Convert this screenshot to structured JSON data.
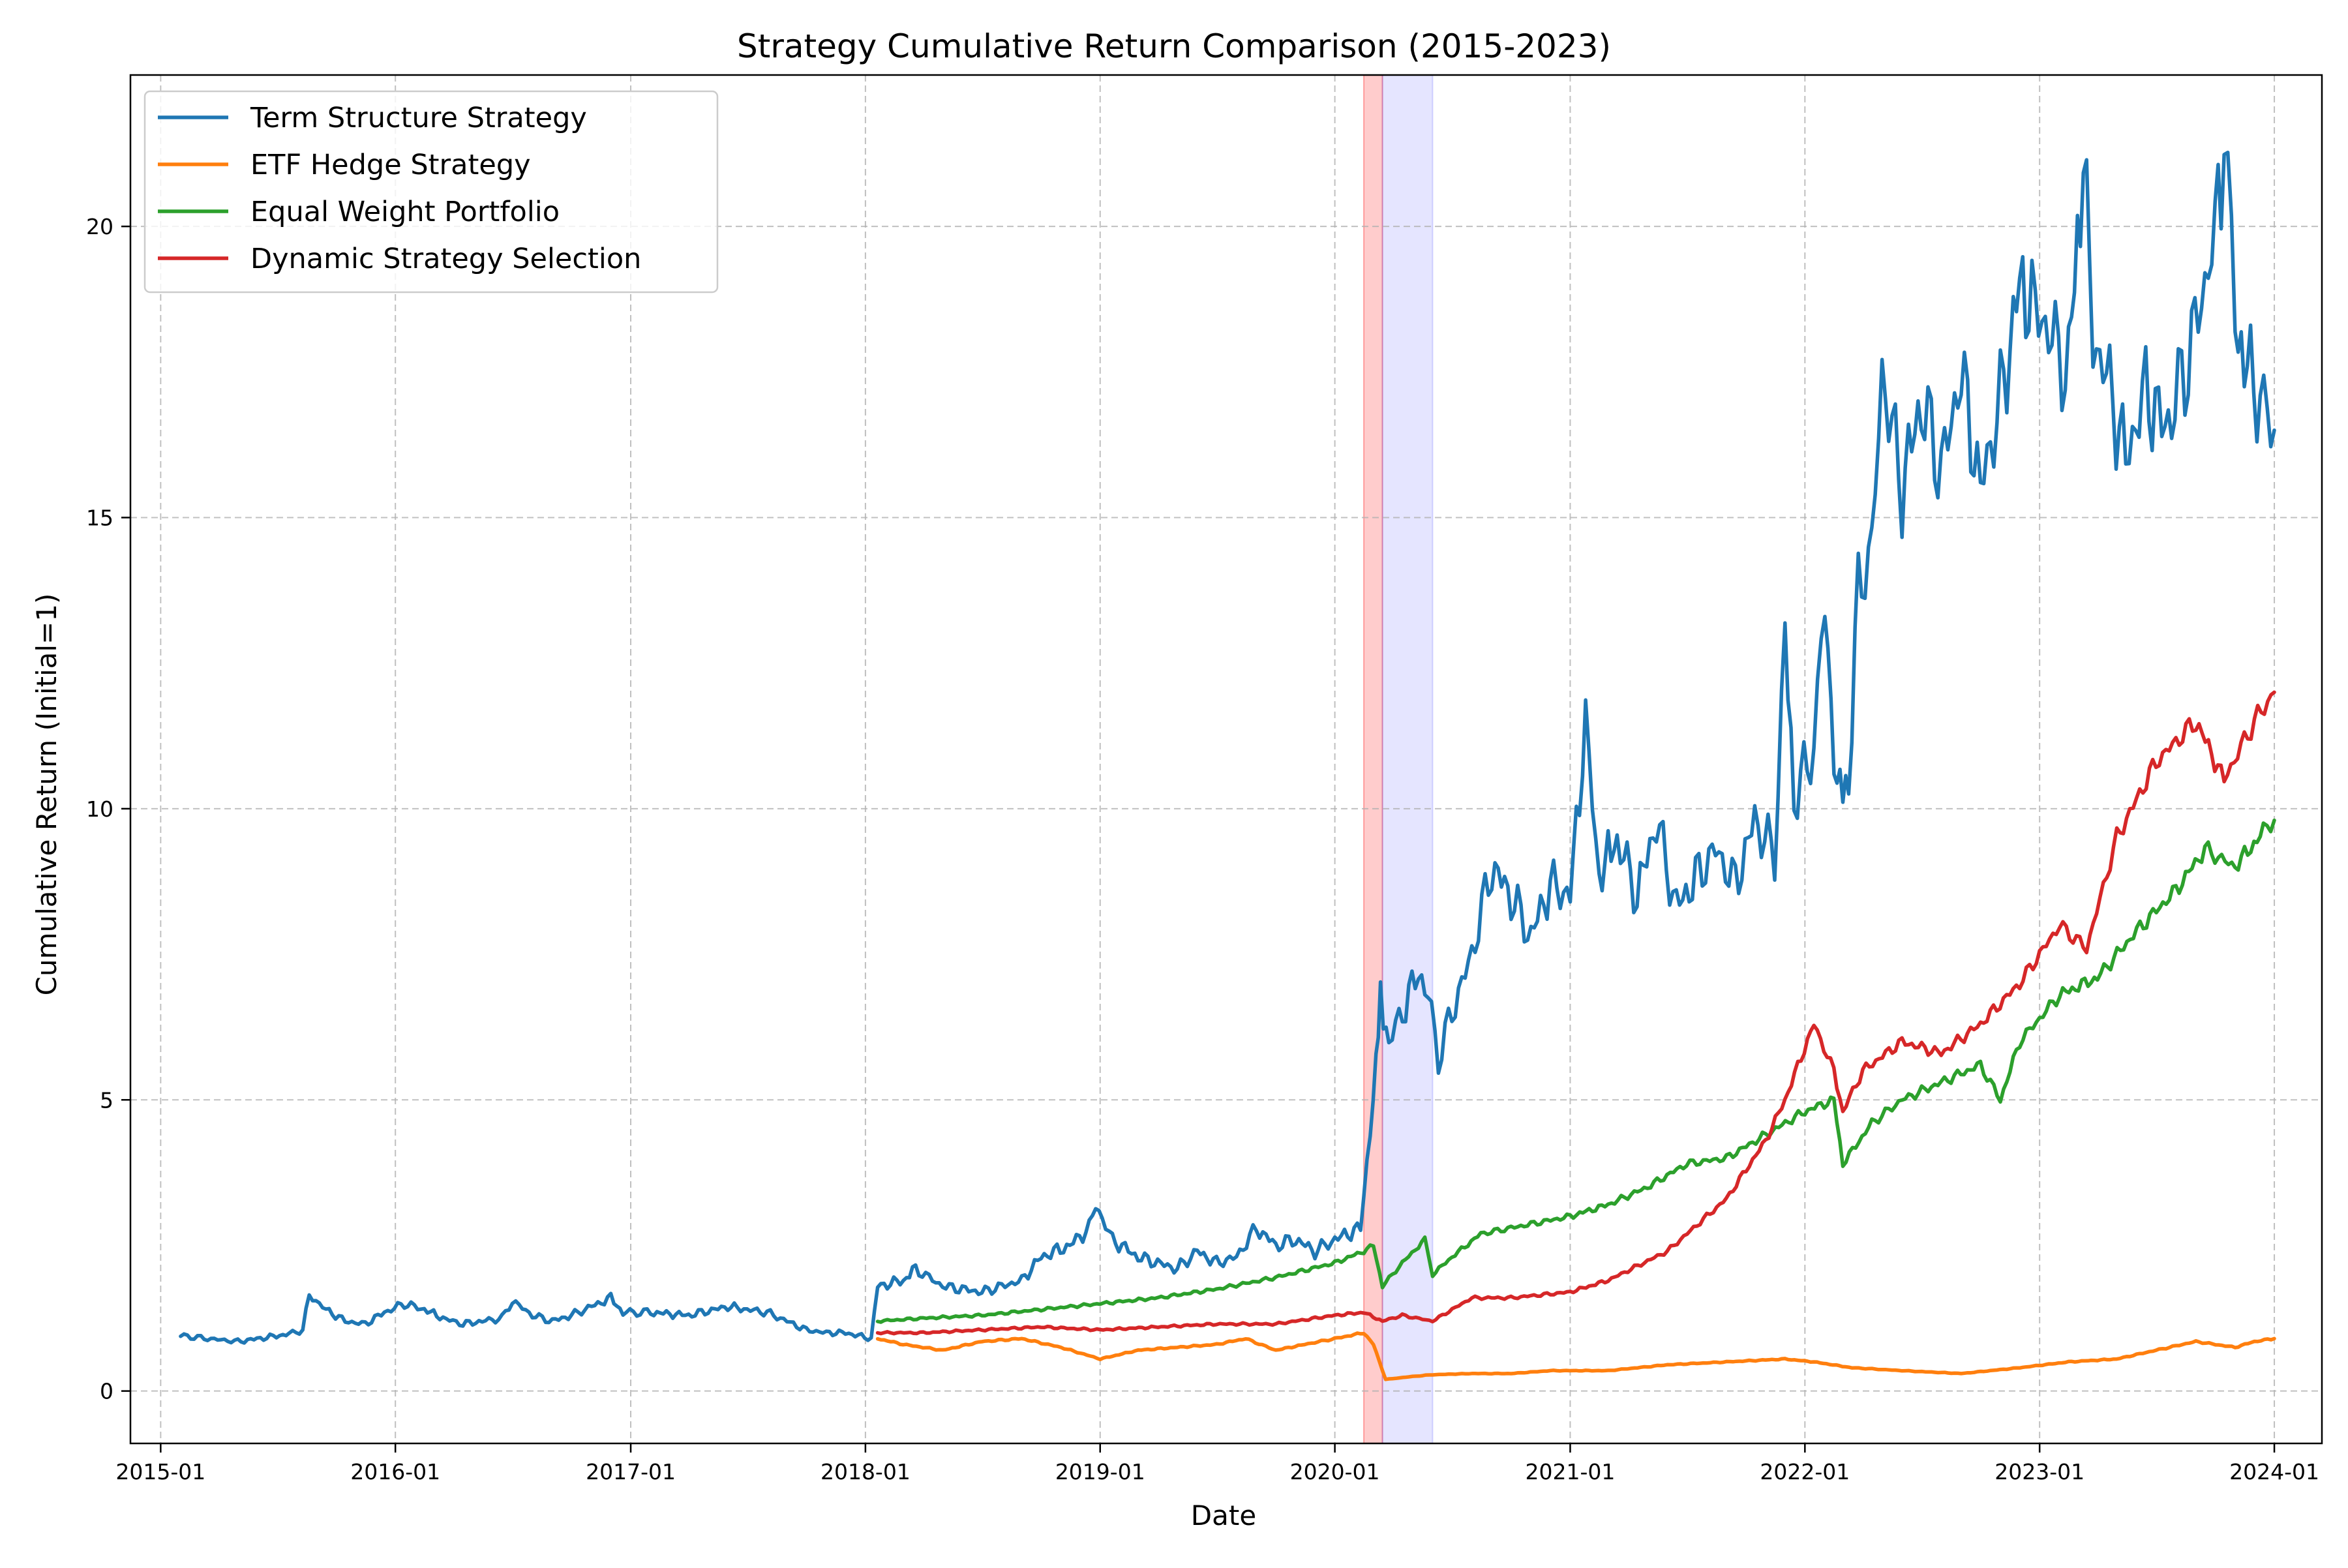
{
  "chart_data": {
    "type": "line",
    "title": "Strategy Cumulative Return Comparison (2015-2023)",
    "xlabel": "Date",
    "ylabel": "Cumulative Return (Initial=1)",
    "xlim": [
      "2014-11-15",
      "2024-03-15"
    ],
    "ylim": [
      -0.9,
      22.6
    ],
    "grid": true,
    "legend_position": "top-left",
    "x_ticks": [
      "2015-01",
      "2016-01",
      "2017-01",
      "2018-01",
      "2019-01",
      "2020-01",
      "2021-01",
      "2022-01",
      "2023-01",
      "2024-01"
    ],
    "y_ticks": [
      0,
      5,
      10,
      15,
      20
    ],
    "shaded_regions": [
      {
        "start": "2020-02-15",
        "end": "2020-03-15",
        "color": "#ff0000",
        "opacity": 0.2
      },
      {
        "start": "2020-03-15",
        "end": "2020-06-01",
        "color": "#0000ff",
        "opacity": 0.1
      }
    ],
    "series": [
      {
        "name": "Term Structure Strategy",
        "color": "#1f77b4",
        "points": [
          [
            "2015-02-01",
            0.95
          ],
          [
            "2015-03-15",
            0.9
          ],
          [
            "2015-05-01",
            0.85
          ],
          [
            "2015-06-15",
            0.92
          ],
          [
            "2015-07-20",
            0.98
          ],
          [
            "2015-08-10",
            1.05
          ],
          [
            "2015-08-20",
            1.65
          ],
          [
            "2015-09-15",
            1.4
          ],
          [
            "2015-10-15",
            1.2
          ],
          [
            "2015-11-15",
            1.15
          ],
          [
            "2015-12-15",
            1.35
          ],
          [
            "2016-01-15",
            1.5
          ],
          [
            "2016-02-15",
            1.4
          ],
          [
            "2016-03-15",
            1.25
          ],
          [
            "2016-04-15",
            1.15
          ],
          [
            "2016-05-15",
            1.2
          ],
          [
            "2016-06-15",
            1.25
          ],
          [
            "2016-07-01",
            1.55
          ],
          [
            "2016-08-01",
            1.3
          ],
          [
            "2016-09-01",
            1.2
          ],
          [
            "2016-10-01",
            1.3
          ],
          [
            "2016-11-01",
            1.45
          ],
          [
            "2016-12-01",
            1.6
          ],
          [
            "2016-12-20",
            1.35
          ],
          [
            "2017-02-01",
            1.35
          ],
          [
            "2017-04-01",
            1.3
          ],
          [
            "2017-06-01",
            1.45
          ],
          [
            "2017-07-01",
            1.4
          ],
          [
            "2017-08-01",
            1.35
          ],
          [
            "2017-09-01",
            1.2
          ],
          [
            "2017-10-01",
            1.05
          ],
          [
            "2017-11-01",
            1.0
          ],
          [
            "2017-12-01",
            1.0
          ],
          [
            "2018-01-10",
            0.9
          ],
          [
            "2018-01-20",
            1.8
          ],
          [
            "2018-03-01",
            1.9
          ],
          [
            "2018-03-20",
            2.1
          ],
          [
            "2018-05-01",
            1.8
          ],
          [
            "2018-07-01",
            1.7
          ],
          [
            "2018-09-01",
            1.9
          ],
          [
            "2018-10-01",
            2.3
          ],
          [
            "2018-11-15",
            2.5
          ],
          [
            "2018-12-15",
            2.8
          ],
          [
            "2018-12-25",
            3.2
          ],
          [
            "2019-01-20",
            2.6
          ],
          [
            "2019-03-01",
            2.3
          ],
          [
            "2019-05-01",
            2.1
          ],
          [
            "2019-06-01",
            2.4
          ],
          [
            "2019-07-01",
            2.2
          ],
          [
            "2019-08-01",
            2.3
          ],
          [
            "2019-09-01",
            2.8
          ],
          [
            "2019-10-01",
            2.5
          ],
          [
            "2019-11-01",
            2.6
          ],
          [
            "2019-12-01",
            2.4
          ],
          [
            "2020-01-01",
            2.6
          ],
          [
            "2020-02-10",
            2.8
          ],
          [
            "2020-02-25",
            4.5
          ],
          [
            "2020-03-05",
            5.5
          ],
          [
            "2020-03-12",
            6.8
          ],
          [
            "2020-03-25",
            6.0
          ],
          [
            "2020-04-15",
            6.5
          ],
          [
            "2020-05-10",
            7.2
          ],
          [
            "2020-05-25",
            6.8
          ],
          [
            "2020-06-10",
            5.7
          ],
          [
            "2020-07-01",
            6.5
          ],
          [
            "2020-08-01",
            7.5
          ],
          [
            "2020-09-01",
            9.0
          ],
          [
            "2020-10-01",
            8.5
          ],
          [
            "2020-11-01",
            7.8
          ],
          [
            "2020-12-01",
            8.7
          ],
          [
            "2021-01-01",
            8.5
          ],
          [
            "2021-01-25",
            11.5
          ],
          [
            "2021-02-15",
            8.8
          ],
          [
            "2021-03-15",
            9.5
          ],
          [
            "2021-04-15",
            8.5
          ],
          [
            "2021-05-15",
            9.8
          ],
          [
            "2021-06-15",
            8.3
          ],
          [
            "2021-07-15",
            8.8
          ],
          [
            "2021-08-15",
            9.3
          ],
          [
            "2021-09-15",
            8.7
          ],
          [
            "2021-10-15",
            9.8
          ],
          [
            "2021-11-15",
            9.2
          ],
          [
            "2021-12-01",
            12.9
          ],
          [
            "2021-12-15",
            10.2
          ],
          [
            "2022-01-15",
            11.0
          ],
          [
            "2022-02-01",
            13.6
          ],
          [
            "2022-02-20",
            10.2
          ],
          [
            "2022-03-10",
            10.5
          ],
          [
            "2022-03-25",
            13.8
          ],
          [
            "2022-04-15",
            14.5
          ],
          [
            "2022-05-01",
            17.5
          ],
          [
            "2022-06-01",
            15.5
          ],
          [
            "2022-07-01",
            17.0
          ],
          [
            "2022-08-01",
            15.8
          ],
          [
            "2022-09-01",
            17.5
          ],
          [
            "2022-10-01",
            15.5
          ],
          [
            "2022-11-01",
            17.0
          ],
          [
            "2022-12-01",
            19.0
          ],
          [
            "2022-12-20",
            18.7
          ],
          [
            "2023-01-15",
            18.2
          ],
          [
            "2023-02-15",
            17.5
          ],
          [
            "2023-03-10",
            21.3
          ],
          [
            "2023-03-25",
            18.0
          ],
          [
            "2023-04-15",
            17.5
          ],
          [
            "2023-05-15",
            16.0
          ],
          [
            "2023-06-15",
            17.2
          ],
          [
            "2023-07-15",
            16.5
          ],
          [
            "2023-08-15",
            17.5
          ],
          [
            "2023-09-15",
            19.0
          ],
          [
            "2023-10-01",
            20.0
          ],
          [
            "2023-10-15",
            21.5
          ],
          [
            "2023-11-01",
            18.5
          ],
          [
            "2023-11-20",
            17.5
          ],
          [
            "2023-12-10",
            17.0
          ],
          [
            "2024-01-01",
            16.5
          ]
        ]
      },
      {
        "name": "ETF Hedge Strategy",
        "color": "#ff7f0e",
        "points": [
          [
            "2018-01-20",
            0.9
          ],
          [
            "2018-03-01",
            0.8
          ],
          [
            "2018-05-01",
            0.7
          ],
          [
            "2018-07-01",
            0.85
          ],
          [
            "2018-09-01",
            0.9
          ],
          [
            "2018-11-01",
            0.75
          ],
          [
            "2019-01-01",
            0.55
          ],
          [
            "2019-03-01",
            0.7
          ],
          [
            "2019-05-01",
            0.75
          ],
          [
            "2019-07-01",
            0.8
          ],
          [
            "2019-08-15",
            0.9
          ],
          [
            "2019-10-01",
            0.7
          ],
          [
            "2019-11-15",
            0.8
          ],
          [
            "2020-01-01",
            0.9
          ],
          [
            "2020-02-15",
            1.0
          ],
          [
            "2020-03-01",
            0.8
          ],
          [
            "2020-03-20",
            0.2
          ],
          [
            "2020-05-01",
            0.25
          ],
          [
            "2020-06-01",
            0.28
          ],
          [
            "2020-08-01",
            0.3
          ],
          [
            "2020-10-01",
            0.3
          ],
          [
            "2020-12-01",
            0.35
          ],
          [
            "2021-03-01",
            0.35
          ],
          [
            "2021-06-01",
            0.45
          ],
          [
            "2021-09-01",
            0.5
          ],
          [
            "2021-12-01",
            0.55
          ],
          [
            "2022-01-15",
            0.5
          ],
          [
            "2022-03-15",
            0.4
          ],
          [
            "2022-06-01",
            0.35
          ],
          [
            "2022-09-01",
            0.3
          ],
          [
            "2022-12-01",
            0.4
          ],
          [
            "2023-02-15",
            0.5
          ],
          [
            "2023-05-01",
            0.55
          ],
          [
            "2023-07-01",
            0.7
          ],
          [
            "2023-09-01",
            0.85
          ],
          [
            "2023-11-01",
            0.75
          ],
          [
            "2023-12-01",
            0.85
          ],
          [
            "2024-01-01",
            0.9
          ]
        ]
      },
      {
        "name": "Equal Weight Portfolio",
        "color": "#2ca02c",
        "points": [
          [
            "2018-01-20",
            1.2
          ],
          [
            "2018-04-01",
            1.25
          ],
          [
            "2018-07-01",
            1.3
          ],
          [
            "2018-10-01",
            1.4
          ],
          [
            "2019-01-01",
            1.5
          ],
          [
            "2019-04-01",
            1.6
          ],
          [
            "2019-07-01",
            1.75
          ],
          [
            "2019-10-01",
            1.95
          ],
          [
            "2020-01-01",
            2.2
          ],
          [
            "2020-02-15",
            2.4
          ],
          [
            "2020-03-01",
            2.5
          ],
          [
            "2020-03-15",
            1.8
          ],
          [
            "2020-04-15",
            2.2
          ],
          [
            "2020-05-20",
            2.6
          ],
          [
            "2020-06-01",
            2.0
          ],
          [
            "2020-07-01",
            2.3
          ],
          [
            "2020-08-15",
            2.7
          ],
          [
            "2020-10-01",
            2.8
          ],
          [
            "2021-01-01",
            3.0
          ],
          [
            "2021-03-01",
            3.2
          ],
          [
            "2021-05-01",
            3.5
          ],
          [
            "2021-07-01",
            3.9
          ],
          [
            "2021-09-01",
            4.0
          ],
          [
            "2021-11-01",
            4.4
          ],
          [
            "2022-01-01",
            4.8
          ],
          [
            "2022-02-15",
            5.0
          ],
          [
            "2022-03-01",
            3.9
          ],
          [
            "2022-04-15",
            4.6
          ],
          [
            "2022-06-01",
            5.0
          ],
          [
            "2022-08-01",
            5.3
          ],
          [
            "2022-10-01",
            5.6
          ],
          [
            "2022-11-01",
            5.0
          ],
          [
            "2022-12-01",
            6.0
          ],
          [
            "2023-02-01",
            6.8
          ],
          [
            "2023-04-01",
            7.1
          ],
          [
            "2023-06-01",
            7.9
          ],
          [
            "2023-08-01",
            8.6
          ],
          [
            "2023-09-15",
            9.3
          ],
          [
            "2023-11-01",
            9.0
          ],
          [
            "2023-12-15",
            9.6
          ],
          [
            "2024-01-01",
            9.8
          ]
        ]
      },
      {
        "name": "Dynamic Strategy Selection",
        "color": "#d62728",
        "points": [
          [
            "2018-01-20",
            1.0
          ],
          [
            "2018-04-01",
            1.0
          ],
          [
            "2018-07-01",
            1.05
          ],
          [
            "2018-10-01",
            1.1
          ],
          [
            "2019-01-01",
            1.05
          ],
          [
            "2019-04-01",
            1.1
          ],
          [
            "2019-07-01",
            1.15
          ],
          [
            "2019-10-01",
            1.15
          ],
          [
            "2020-01-01",
            1.3
          ],
          [
            "2020-02-15",
            1.35
          ],
          [
            "2020-03-15",
            1.2
          ],
          [
            "2020-04-15",
            1.3
          ],
          [
            "2020-06-01",
            1.2
          ],
          [
            "2020-08-01",
            1.6
          ],
          [
            "2020-10-01",
            1.6
          ],
          [
            "2021-01-01",
            1.7
          ],
          [
            "2021-03-01",
            1.9
          ],
          [
            "2021-06-01",
            2.4
          ],
          [
            "2021-09-01",
            3.3
          ],
          [
            "2021-11-01",
            4.3
          ],
          [
            "2021-12-01",
            5.0
          ],
          [
            "2022-01-15",
            6.3
          ],
          [
            "2022-02-15",
            5.5
          ],
          [
            "2022-03-01",
            4.8
          ],
          [
            "2022-04-01",
            5.5
          ],
          [
            "2022-06-01",
            6.0
          ],
          [
            "2022-08-01",
            5.8
          ],
          [
            "2022-10-01",
            6.3
          ],
          [
            "2022-12-01",
            7.0
          ],
          [
            "2023-02-01",
            8.0
          ],
          [
            "2023-03-15",
            7.6
          ],
          [
            "2023-05-01",
            9.5
          ],
          [
            "2023-07-01",
            10.8
          ],
          [
            "2023-09-01",
            11.5
          ],
          [
            "2023-10-15",
            10.5
          ],
          [
            "2023-12-01",
            11.5
          ],
          [
            "2024-01-01",
            12.0
          ]
        ]
      }
    ]
  }
}
